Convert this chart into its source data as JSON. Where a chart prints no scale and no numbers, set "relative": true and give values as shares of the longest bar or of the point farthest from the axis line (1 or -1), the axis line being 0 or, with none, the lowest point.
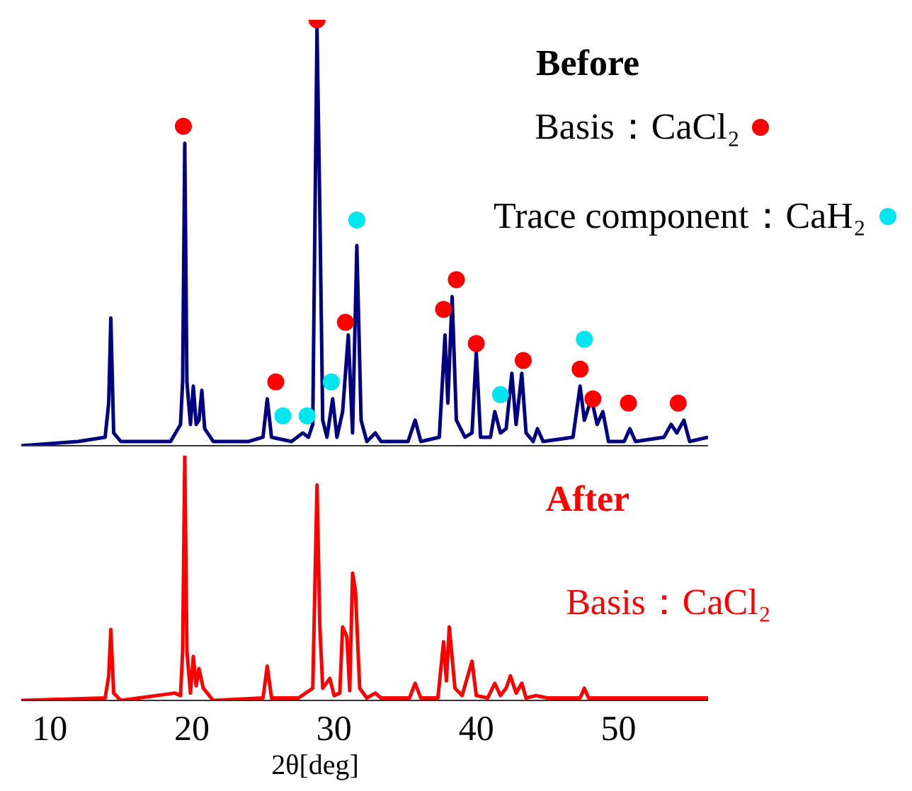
{
  "chart_data": [
    {
      "type": "line",
      "title": "Before",
      "relative": true,
      "xlim": [
        8,
        56.3
      ],
      "tick_labels": false,
      "legend": "top right",
      "line_style": "solid",
      "series": [
        {
          "color": "#000080",
          "x": [
            8,
            12,
            13.9,
            14.15,
            14.3,
            14.5,
            15,
            18.5,
            19.2,
            19.35,
            19.5,
            19.65,
            19.9,
            20.1,
            20.3,
            20.5,
            20.7,
            20.9,
            21.5,
            24,
            25,
            25.3,
            25.6,
            27,
            27.8,
            28.2,
            28.5,
            28.8,
            29,
            29.2,
            29.5,
            29.9,
            30.2,
            30.6,
            31,
            31.3,
            31.6,
            31.9,
            32.3,
            32.9,
            33.3,
            35.2,
            35.7,
            36.1,
            37.4,
            37.8,
            38,
            38.3,
            38.6,
            39.2,
            39.7,
            40,
            40.3,
            41,
            41.3,
            41.7,
            42.1,
            42.5,
            42.8,
            43.2,
            43.5,
            44,
            44.3,
            44.7,
            46.8,
            47.3,
            47.6,
            48.1,
            48.5,
            48.9,
            49.3,
            50.4,
            50.8,
            51.2,
            53.2,
            53.7,
            54.1,
            54.6,
            55,
            56.3
          ],
          "values": [
            0,
            0.01,
            0.02,
            0.1,
            0.3,
            0.03,
            0.01,
            0.01,
            0.05,
            0.15,
            0.71,
            0.15,
            0.05,
            0.14,
            0.05,
            0.06,
            0.13,
            0.04,
            0.01,
            0.01,
            0.02,
            0.11,
            0.02,
            0.01,
            0.03,
            0.02,
            0.05,
            0.98,
            0.55,
            0.06,
            0.02,
            0.11,
            0.02,
            0.08,
            0.26,
            0.03,
            0.47,
            0.06,
            0.01,
            0.03,
            0.01,
            0.01,
            0.06,
            0.01,
            0.02,
            0.26,
            0.1,
            0.35,
            0.06,
            0.02,
            0.03,
            0.22,
            0.02,
            0.02,
            0.08,
            0.03,
            0.04,
            0.17,
            0.05,
            0.17,
            0.03,
            0.01,
            0.04,
            0.01,
            0.02,
            0.14,
            0.06,
            0.11,
            0.05,
            0.08,
            0.01,
            0.01,
            0.04,
            0.01,
            0.02,
            0.05,
            0.03,
            0.06,
            0.01,
            0.02
          ]
        },
        {
          "type": "scatter",
          "name": "Basis：CaCl₂",
          "color": "#ff0000",
          "x": [
            19.4,
            25.9,
            28.8,
            30.8,
            37.7,
            38.6,
            40,
            43.3,
            47.3,
            48.2,
            50.7,
            54.2
          ],
          "values": [
            0.75,
            0.15,
            1,
            0.29,
            0.32,
            0.39,
            0.24,
            0.2,
            0.18,
            0.11,
            0.1,
            0.1
          ]
        },
        {
          "type": "scatter",
          "name": "Trace component：CaH₂",
          "color": "#00e5ee",
          "x": [
            26.4,
            28.1,
            29.8,
            31.6,
            41.7,
            47.6
          ],
          "values": [
            0.07,
            0.07,
            0.15,
            0.53,
            0.12,
            0.25
          ]
        }
      ]
    },
    {
      "type": "line",
      "title": "After",
      "relative": true,
      "xlim": [
        8,
        56.3
      ],
      "xticks": [
        10,
        20,
        30,
        40,
        50
      ],
      "xlabel": "2θ[deg]",
      "tick_labels": "x",
      "legend": "right",
      "line_style": "solid",
      "series": [
        {
          "name": "Basis：CaCl₂",
          "color": "#ff0000",
          "x": [
            8,
            13.9,
            14.15,
            14.3,
            14.5,
            15,
            18.8,
            19.2,
            19.35,
            19.5,
            19.65,
            19.9,
            20.1,
            20.3,
            20.5,
            20.8,
            21.5,
            25,
            25.3,
            25.6,
            27.5,
            28.5,
            28.8,
            29,
            29.2,
            29.7,
            30,
            30.4,
            30.6,
            30.9,
            31.1,
            31.3,
            31.5,
            31.8,
            32.3,
            32.9,
            33.3,
            35.3,
            35.7,
            36.1,
            37.3,
            37.7,
            37.9,
            38.1,
            38.5,
            39,
            39.7,
            40,
            40.8,
            41.3,
            41.7,
            42.1,
            42.4,
            42.8,
            43.2,
            43.5,
            44.2,
            45,
            47.3,
            47.6,
            47.9,
            50,
            53,
            56.2,
            56.3
          ],
          "values": [
            0,
            0.01,
            0.1,
            0.29,
            0.03,
            0,
            0.03,
            0.02,
            0.2,
            1,
            0.2,
            0.03,
            0.18,
            0.06,
            0.13,
            0.05,
            0,
            0.01,
            0.14,
            0.01,
            0.01,
            0.05,
            0.88,
            0.3,
            0.05,
            0.09,
            0.02,
            0.03,
            0.3,
            0.26,
            0.04,
            0.52,
            0.45,
            0.05,
            0.01,
            0.03,
            0.01,
            0.01,
            0.07,
            0.01,
            0.01,
            0.24,
            0.08,
            0.3,
            0.05,
            0.02,
            0.16,
            0.02,
            0.01,
            0.07,
            0.02,
            0.05,
            0.1,
            0.03,
            0.07,
            0.01,
            0.02,
            0.01,
            0.01,
            0.05,
            0.01,
            0.01,
            0.01,
            0.01,
            0.01
          ]
        }
      ]
    }
  ]
}
